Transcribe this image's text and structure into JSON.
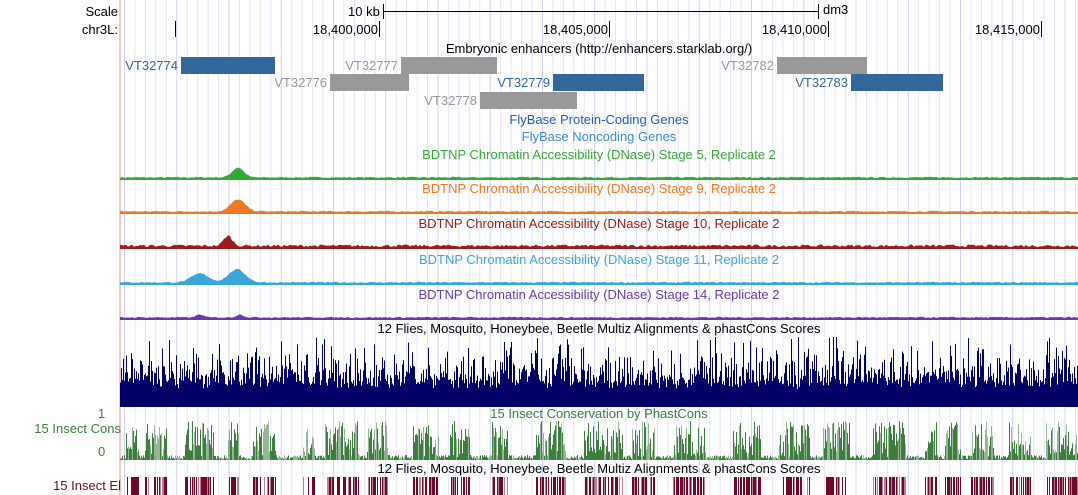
{
  "ruler": {
    "scale_label": "Scale",
    "chrom_label": "chr3L:",
    "scale_bar": "10 kb",
    "assembly": "dm3",
    "ticks": [
      "18,400,000",
      "18,405,000",
      "18,410,000",
      "18,415,000"
    ]
  },
  "enhancers": {
    "title": "Embryonic enhancers (http://enhancers.starklab.org/)",
    "items": [
      {
        "name": "VT32774",
        "color": "#336699"
      },
      {
        "name": "VT32777",
        "color": "#999999"
      },
      {
        "name": "VT32776",
        "color": "#999999"
      },
      {
        "name": "VT32779",
        "color": "#336699"
      },
      {
        "name": "VT32778",
        "color": "#999999"
      },
      {
        "name": "VT32782",
        "color": "#999999"
      },
      {
        "name": "VT32783",
        "color": "#336699"
      }
    ]
  },
  "genes": {
    "coding": "FlyBase Protein-Coding Genes",
    "noncoding": "FlyBase Noncoding Genes"
  },
  "dnase": [
    {
      "title": "BDTNP Chromatin Accessibility (DNase) Stage 5, Replicate 2",
      "color": "#33aa33"
    },
    {
      "title": "BDTNP Chromatin Accessibility (DNase) Stage 9, Replicate 2",
      "color": "#f07820"
    },
    {
      "title": "BDTNP Chromatin Accessibility (DNase) Stage 10, Replicate 2",
      "color": "#a01c1c"
    },
    {
      "title": "BDTNP Chromatin Accessibility (DNase) Stage 11, Replicate 2",
      "color": "#3aa6d8"
    },
    {
      "title": "BDTNP Chromatin Accessibility (DNase) Stage 14, Replicate 2",
      "color": "#6a3aaa"
    }
  ],
  "multiz": {
    "title": "12 Flies, Mosquito, Honeybee, Beetle Multiz Alignments & phastCons Scores",
    "color": "#000066"
  },
  "cons": {
    "title": "15 Insect Conservation by PhastCons",
    "side_label": "15 Insect Cons",
    "ymax": "1",
    "ymin": "0",
    "color": "#3d7d3d"
  },
  "elements": {
    "title": "12 Flies, Mosquito, Honeybee, Beetle Multiz Alignments & phastCons Scores",
    "side_label": "15 Insect El",
    "color": "#6e0a28"
  }
}
